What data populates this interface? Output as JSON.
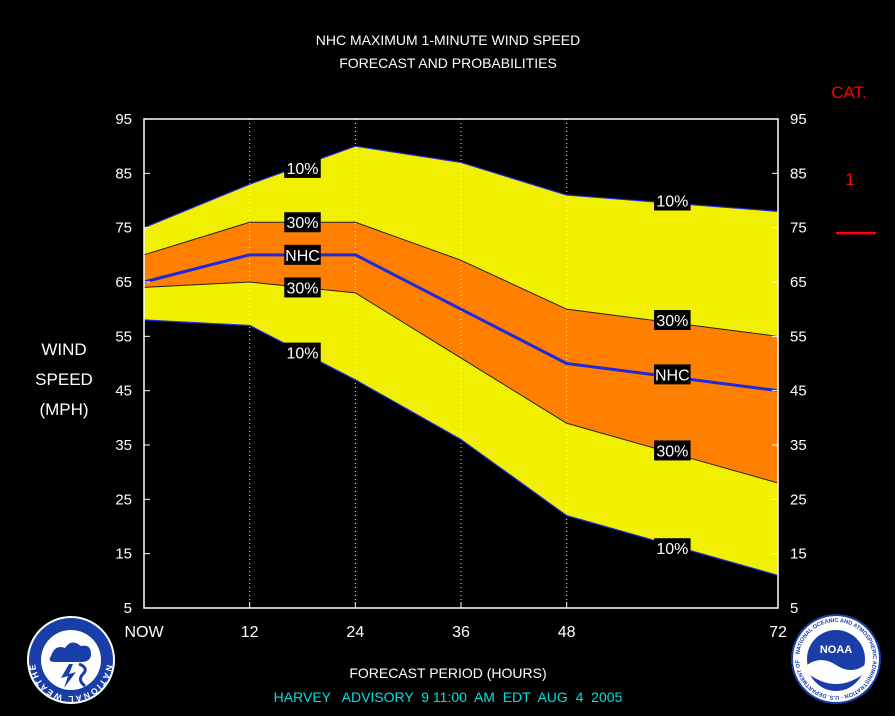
{
  "chart_data": {
    "type": "area",
    "title": "NHC MAXIMUM 1-MINUTE WIND SPEED",
    "subtitle": "FORECAST AND PROBABILITIES",
    "xlabel": "FORECAST PERIOD (HOURS)",
    "ylabel_lines": [
      "WIND",
      "SPEED",
      "(MPH)"
    ],
    "footer": "HARVEY   ADVISORY  9 11:00  AM  EDT  AUG  4  2005",
    "xlim": [
      0,
      72
    ],
    "ylim": [
      5,
      95
    ],
    "x_ticks": [
      0,
      12,
      24,
      36,
      48,
      72
    ],
    "x_tick_labels": [
      "NOW",
      "12",
      "24",
      "36",
      "48",
      "72"
    ],
    "y_ticks": [
      5,
      15,
      25,
      35,
      45,
      55,
      65,
      75,
      85,
      95
    ],
    "vertical_grid_x": [
      12,
      24,
      36,
      48
    ],
    "x": [
      0,
      12,
      24,
      36,
      48,
      72
    ],
    "series": [
      {
        "key": "upper10",
        "label": "10%",
        "values": [
          75,
          83,
          90,
          87,
          81,
          78
        ]
      },
      {
        "key": "upper30",
        "label": "30%",
        "values": [
          70,
          76,
          76,
          69,
          60,
          55
        ]
      },
      {
        "key": "nhc",
        "label": "NHC",
        "values": [
          65,
          70,
          70,
          60,
          50,
          45
        ]
      },
      {
        "key": "lower30",
        "label": "30%",
        "values": [
          64,
          65,
          63,
          51,
          39,
          28
        ]
      },
      {
        "key": "lower10",
        "label": "10%",
        "values": [
          58,
          57,
          47,
          36,
          22,
          11
        ]
      }
    ],
    "annotations": [
      {
        "text": "10%",
        "x": 18,
        "y": 86
      },
      {
        "text": "30%",
        "x": 18,
        "y": 76
      },
      {
        "text": "NHC",
        "x": 18,
        "y": 70
      },
      {
        "text": "30%",
        "x": 18,
        "y": 64
      },
      {
        "text": "10%",
        "x": 18,
        "y": 52
      },
      {
        "text": "10%",
        "x": 60,
        "y": 80
      },
      {
        "text": "30%",
        "x": 60,
        "y": 58
      },
      {
        "text": "NHC",
        "x": 60,
        "y": 48
      },
      {
        "text": "30%",
        "x": 60,
        "y": 34
      },
      {
        "text": "10%",
        "x": 60,
        "y": 16
      }
    ],
    "category": {
      "header": "CAT.",
      "labels": [
        {
          "text": "1",
          "y": 84
        }
      ],
      "thresholds": [
        74
      ]
    },
    "colors": {
      "background": "#000000",
      "outer_band": "#f0f000",
      "inner_band": "#ff8000",
      "nhc_line": "#1e28dc",
      "boundary_line": "#1e28dc",
      "category_text": "#ff0000",
      "footer_text": "#00e0e0",
      "text": "#ffffff"
    }
  },
  "logos": {
    "left": {
      "icon": "nws-logo-icon",
      "ring_text": "NATIONAL WEATHER SERVICE"
    },
    "right": {
      "icon": "noaa-logo-icon",
      "center_text": "NOAA",
      "ring_text": "NATIONAL OCEANIC AND ATMOSPHERIC ADMINISTRATION · U.S. DEPARTMENT OF COMMERCE"
    }
  }
}
